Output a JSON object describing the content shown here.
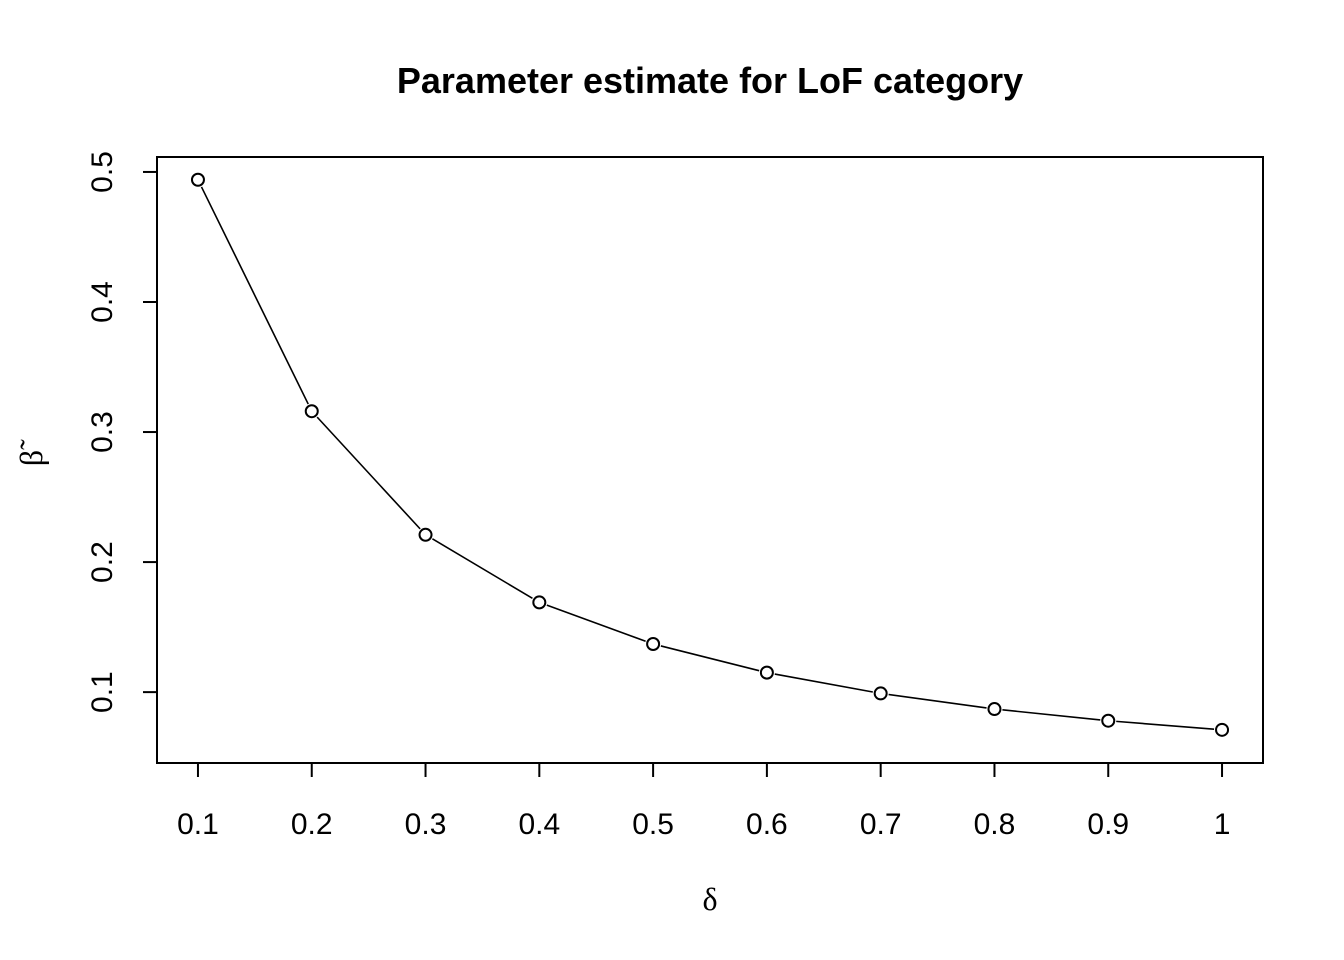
{
  "chart_data": {
    "type": "line",
    "title": "Parameter estimate for LoF category",
    "xlabel": "δ",
    "ylabel": "β̃",
    "x": [
      0.1,
      0.2,
      0.3,
      0.4,
      0.5,
      0.6,
      0.7,
      0.8,
      0.9,
      1.0
    ],
    "series": [
      {
        "values": [
          0.494,
          0.316,
          0.221,
          0.169,
          0.137,
          0.115,
          0.099,
          0.087,
          0.078,
          0.071
        ]
      }
    ],
    "xticks": [
      0.1,
      0.2,
      0.3,
      0.4,
      0.5,
      0.6,
      0.7,
      0.8,
      0.9,
      1
    ],
    "xtick_labels": [
      "0.1",
      "0.2",
      "0.3",
      "0.4",
      "0.5",
      "0.6",
      "0.7",
      "0.8",
      "0.9",
      "1"
    ],
    "yticks": [
      0.1,
      0.2,
      0.3,
      0.4,
      0.5
    ],
    "ytick_labels": [
      "0.1",
      "0.2",
      "0.3",
      "0.4",
      "0.5"
    ],
    "xlim": [
      0.064,
      1.036
    ],
    "ylim": [
      0.0455,
      0.5115
    ],
    "grid": false,
    "legend": "none",
    "marker": "open-circle",
    "line_color": "#000000"
  }
}
